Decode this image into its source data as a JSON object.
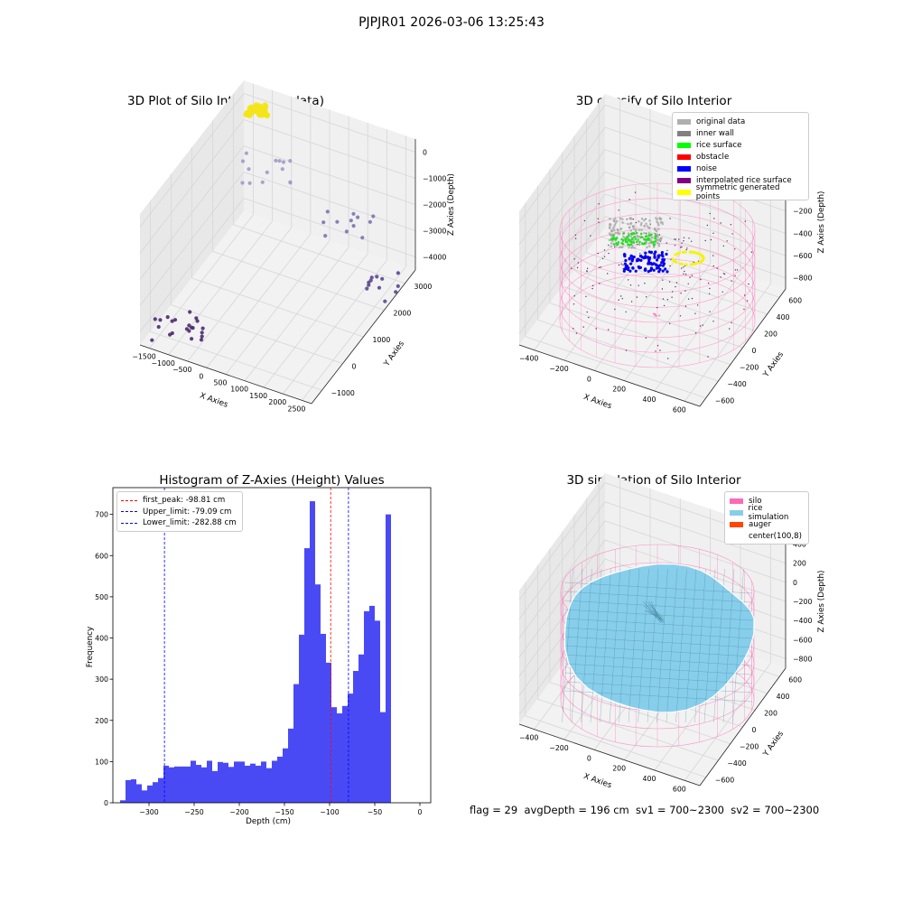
{
  "figure": {
    "suptitle": "PJPJR01 2026-03-06 13:25:43",
    "footer": "flag = 29  avgDepth = 196 cm  sv1 = 700~2300  sv2 = 700~2300"
  },
  "chart_data": [
    {
      "type": "scatter",
      "projection": "3d",
      "title": "3D Plot of Silo Interior(row data)",
      "xlabel": "X Axies",
      "ylabel": "Y Axies",
      "zlabel": "Z Axies (Depth)",
      "x_ticks": [
        "−1500",
        "−1000",
        "−500",
        "0",
        "500",
        "1000",
        "1500",
        "2000",
        "2500"
      ],
      "y_ticks": [
        "−1000",
        "0",
        "1000",
        "2000",
        "3000"
      ],
      "z_ticks": [
        "0",
        "−1000",
        "−2000",
        "−3000",
        "−4000"
      ],
      "xlim": [
        -1500,
        2500
      ],
      "ylim": [
        -1500,
        3200
      ],
      "zlim": [
        -4300,
        0
      ],
      "clusters": [
        {
          "name": "",
          "x": -1000,
          "y": -700,
          "z": -4200,
          "count": 22,
          "color": "#4b2a6e"
        },
        {
          "name": "",
          "x": 2200,
          "y": 2000,
          "z": -3900,
          "count": 12,
          "color": "#5a4690"
        },
        {
          "name": "",
          "x": 1200,
          "y": 2600,
          "z": -2900,
          "count": 12,
          "color": "#7b74b0"
        },
        {
          "name": "",
          "x": -800,
          "y": 3000,
          "z": -2400,
          "count": 14,
          "color": "#9d9bc8"
        },
        {
          "name": "",
          "x": -1100,
          "y": 3000,
          "z": -600,
          "count": 30,
          "color": "#f4e418"
        }
      ]
    },
    {
      "type": "scatter",
      "projection": "3d",
      "title": "3D classify of Silo Interior",
      "xlabel": "X Axies",
      "ylabel": "Y Axies",
      "zlabel": "Z Axies (Depth)",
      "x_ticks": [
        "−400",
        "−200",
        "0",
        "200",
        "400",
        "600"
      ],
      "y_ticks": [
        "−600",
        "−400",
        "−200",
        "0",
        "200",
        "400",
        "600"
      ],
      "z_ticks": [
        "200",
        "0",
        "−200",
        "−400",
        "−600",
        "−800"
      ],
      "xlim": [
        -450,
        650
      ],
      "ylim": [
        -650,
        650
      ],
      "zlim": [
        -850,
        300
      ],
      "legend": [
        {
          "label": "original data",
          "color": "#b0b0b0"
        },
        {
          "label": "inner wall",
          "color": "#808080"
        },
        {
          "label": "rice surface",
          "color": "#00ff00"
        },
        {
          "label": "obstacle",
          "color": "#ff0000"
        },
        {
          "label": "noise",
          "color": "#0000ff"
        },
        {
          "label": "interpolated rice surface",
          "color": "#800080"
        },
        {
          "label": "symmetric generated points",
          "color": "#ffff00"
        }
      ],
      "legend_loc": "upper right"
    },
    {
      "type": "bar",
      "title": "Histogram of Z-Axies (Height) Values",
      "xlabel": "Depth (cm)",
      "ylabel": "Frequency",
      "x_ticks": [
        -300,
        -250,
        -200,
        -150,
        -100,
        -50,
        0
      ],
      "y_ticks": [
        0,
        100,
        200,
        300,
        400,
        500,
        600,
        700
      ],
      "xlim": [
        -340,
        12
      ],
      "ylim": [
        0,
        765
      ],
      "bin_start": -332,
      "bin_width": 6,
      "values": [
        6,
        55,
        57,
        45,
        30,
        42,
        50,
        60,
        90,
        86,
        88,
        88,
        88,
        102,
        92,
        86,
        102,
        77,
        99,
        97,
        87,
        100,
        100,
        90,
        95,
        90,
        100,
        84,
        102,
        112,
        132,
        180,
        288,
        408,
        618,
        732,
        530,
        410,
        340,
        232,
        217,
        235,
        265,
        320,
        360,
        465,
        478,
        442,
        220,
        700
      ],
      "bar_color": "#4a4af5",
      "legend": [
        {
          "label": "first_peak: -98.81 cm",
          "value": -98.81,
          "color": "#ff0000"
        },
        {
          "label": "Upper_limit: -79.09 cm",
          "value": -79.09,
          "color": "#0000ff"
        },
        {
          "label": "Lower_limit: -282.88 cm",
          "value": -282.88,
          "color": "#0000ff"
        }
      ],
      "legend_loc": "upper left"
    },
    {
      "type": "surface",
      "projection": "3d",
      "title": "3D simulation of Silo Interior",
      "xlabel": "X Axies",
      "ylabel": "Y Axies",
      "zlabel": "Z Axies (Depth)",
      "x_ticks": [
        "−400",
        "−200",
        "0",
        "200",
        "400",
        "600"
      ],
      "y_ticks": [
        "−600",
        "−400",
        "−200",
        "0",
        "200",
        "400",
        "600"
      ],
      "z_ticks": [
        "400",
        "200",
        "0",
        "−200",
        "−400",
        "−600",
        "−800"
      ],
      "xlim": [
        -450,
        650
      ],
      "ylim": [
        -650,
        650
      ],
      "zlim": [
        -850,
        450
      ],
      "legend": [
        {
          "label": "silo",
          "color": "#ff69b4"
        },
        {
          "label": "rice simulation",
          "color": "#87ceeb"
        },
        {
          "label": "auger",
          "color": "#ff4500"
        },
        {
          "label": "center(100,8)",
          "color": ""
        }
      ],
      "legend_loc": "upper right"
    }
  ]
}
